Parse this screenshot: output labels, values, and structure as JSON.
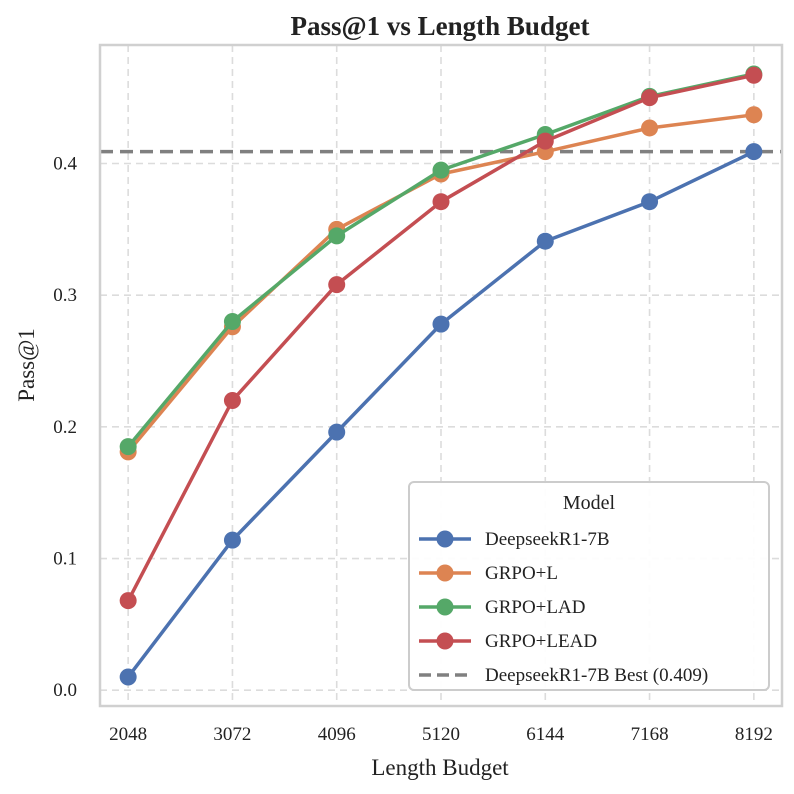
{
  "chart_data": {
    "type": "line",
    "title": "Pass@1 vs Length Budget",
    "xlabel": "Length Budget",
    "ylabel": "Pass@1",
    "x": [
      2048,
      3072,
      4096,
      5120,
      6144,
      7168,
      8192
    ],
    "x_tick_labels": [
      "2048",
      "3072",
      "4096",
      "5120",
      "6144",
      "7168",
      "8192"
    ],
    "y_ticks": [
      0.0,
      0.1,
      0.2,
      0.3,
      0.4
    ],
    "y_tick_labels": [
      "0.0",
      "0.1",
      "0.2",
      "0.3",
      "0.4"
    ],
    "ylim": [
      -0.012,
      0.49
    ],
    "grid": true,
    "legend": {
      "title": "Model",
      "position": "bottom-right"
    },
    "series": [
      {
        "name": "DeepseekR1-7B",
        "color": "#4c72b0",
        "values": [
          0.01,
          0.114,
          0.196,
          0.278,
          0.341,
          0.371,
          0.409
        ]
      },
      {
        "name": "GRPO+L",
        "color": "#dd8452",
        "values": [
          0.181,
          0.276,
          0.35,
          0.392,
          0.409,
          0.427,
          0.437
        ]
      },
      {
        "name": "GRPO+LAD",
        "color": "#55a868",
        "values": [
          0.185,
          0.28,
          0.345,
          0.395,
          0.422,
          0.451,
          0.468
        ]
      },
      {
        "name": "GRPO+LEAD",
        "color": "#c44e52",
        "values": [
          0.068,
          0.22,
          0.308,
          0.371,
          0.417,
          0.45,
          0.467
        ]
      }
    ],
    "reference_line": {
      "name": "DeepseekR1-7B Best (0.409)",
      "value": 0.409,
      "color": "#808080",
      "style": "dashed"
    }
  }
}
